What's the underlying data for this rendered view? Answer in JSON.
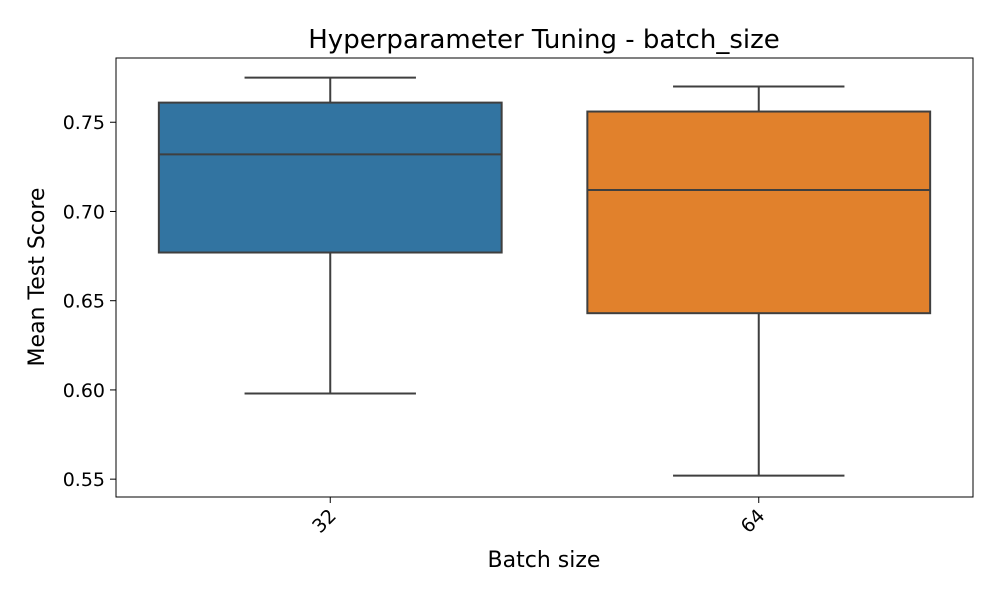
{
  "chart_data": {
    "type": "box",
    "title": "Hyperparameter Tuning - batch_size",
    "xlabel": "Batch size",
    "ylabel": "Mean Test Score",
    "categories": [
      "32",
      "64"
    ],
    "boxes": [
      {
        "category": "32",
        "whisker_low": 0.598,
        "q1": 0.677,
        "median": 0.732,
        "q3": 0.761,
        "whisker_high": 0.775,
        "color": "#3274a1"
      },
      {
        "category": "64",
        "whisker_low": 0.552,
        "q1": 0.643,
        "median": 0.712,
        "q3": 0.756,
        "whisker_high": 0.77,
        "color": "#e1812c"
      }
    ],
    "yticks": [
      0.55,
      0.6,
      0.65,
      0.7,
      0.75
    ],
    "ytick_labels": [
      "0.55",
      "0.60",
      "0.65",
      "0.70",
      "0.75"
    ],
    "ylim": [
      0.54,
      0.786
    ],
    "xtick_rotation": 45,
    "grid": false,
    "line_color": "#3f3f3f"
  }
}
